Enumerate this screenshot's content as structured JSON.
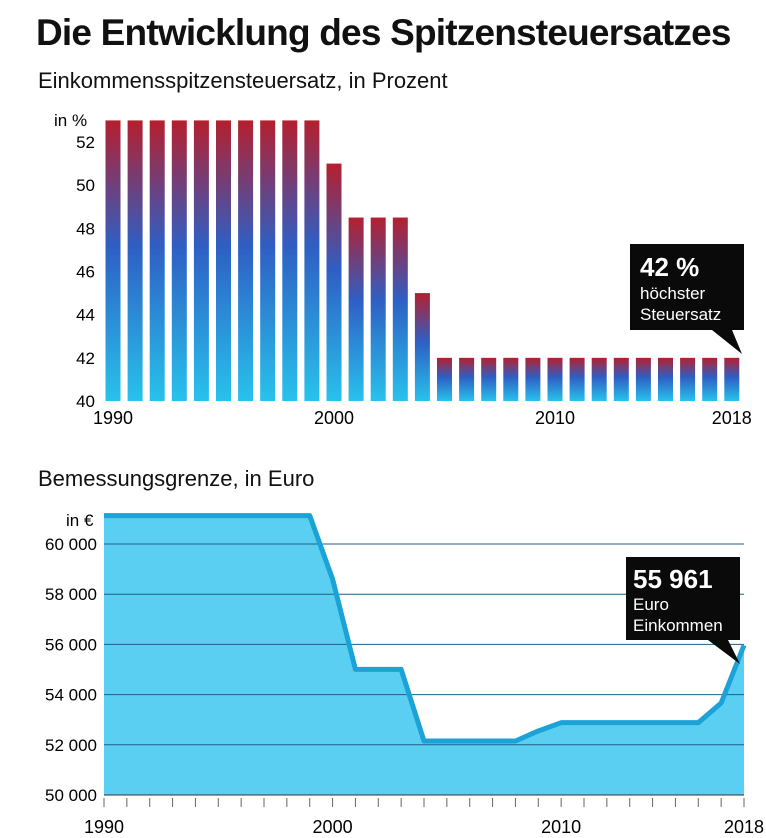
{
  "title": "Die Entwicklung des Spitzensteuersatzes",
  "chart_data": [
    {
      "type": "bar",
      "subtitle": "Einkommensspitzensteuersatz, in Prozent",
      "unit_label": "in %",
      "x": [
        1990,
        1991,
        1992,
        1993,
        1994,
        1995,
        1996,
        1997,
        1998,
        1999,
        2000,
        2001,
        2002,
        2003,
        2004,
        2005,
        2006,
        2007,
        2008,
        2009,
        2010,
        2011,
        2012,
        2013,
        2014,
        2015,
        2016,
        2017,
        2018
      ],
      "values": [
        53,
        53,
        53,
        53,
        53,
        53,
        53,
        53,
        53,
        53,
        51,
        48.5,
        48.5,
        48.5,
        45,
        42,
        42,
        42,
        42,
        42,
        42,
        42,
        42,
        42,
        42,
        42,
        42,
        42,
        42
      ],
      "ylim": [
        40,
        53
      ],
      "yticks": [
        40,
        42,
        44,
        46,
        48,
        50,
        52
      ],
      "xtick_labels": [
        "1990",
        "2000",
        "2010",
        "2018"
      ],
      "callout": {
        "value": "42 %",
        "line1": "höchster",
        "line2": "Steuersatz"
      },
      "colors": {
        "bar_top": "#b51f2e",
        "bar_mid": "#2e5fc4",
        "bar_bottom": "#28c2ec"
      }
    },
    {
      "type": "area",
      "subtitle": "Bemessungsgrenze, in Euro",
      "unit_label": "in €",
      "x": [
        1990,
        1999,
        2000,
        2001,
        2003,
        2004,
        2008,
        2009,
        2010,
        2016,
        2017,
        2018
      ],
      "values": [
        61130,
        61130,
        58600,
        55007,
        55007,
        52151,
        52151,
        52551,
        52881,
        52881,
        53665,
        55961
      ],
      "ylim": [
        50000,
        61300
      ],
      "yticks": [
        "50 000",
        "52 000",
        "54 000",
        "56 000",
        "58 000",
        "60 000"
      ],
      "ytick_values": [
        50000,
        52000,
        54000,
        56000,
        58000,
        60000
      ],
      "xtick_labels": [
        "1990",
        "2000",
        "2010",
        "2018"
      ],
      "callout": {
        "value": "55 961",
        "line1": "Euro",
        "line2": "Einkommen"
      },
      "colors": {
        "fill": "#5bcff2",
        "line": "#1ba3d8"
      }
    }
  ]
}
